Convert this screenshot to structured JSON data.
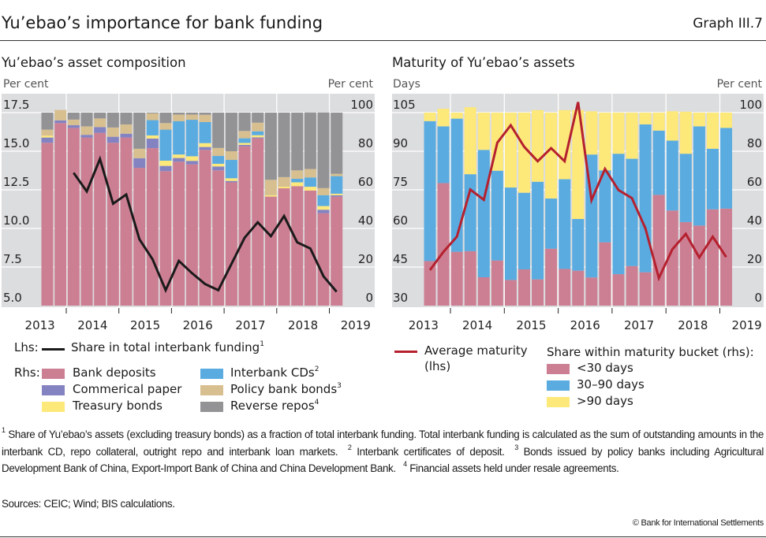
{
  "header": {
    "title": "Yu’ebao’s importance for bank funding",
    "graph_id": "Graph III.7"
  },
  "colors": {
    "deposits": "#cc7f93",
    "cp": "#8483c2",
    "treasury": "#fde87a",
    "cds": "#5aabe0",
    "policy": "#d7bf8f",
    "repos": "#939396",
    "line_left": "#1a1a1a",
    "line_right": "#b5202e",
    "plot_bg": "#dcdddf",
    "short": "#cc7f93",
    "mid": "#5aabe0",
    "long": "#fde87a"
  },
  "chart_data": [
    {
      "type": "bar",
      "stacked": true,
      "title": "Yu’ebao’s asset composition",
      "ylabel_left": "Per cent",
      "ylabel_right": "Per cent",
      "ylim_left": [
        5.0,
        17.5
      ],
      "ylim_right": [
        0,
        100
      ],
      "yticks_left": [
        "17.5",
        "15.0",
        "12.5",
        "10.0",
        "7.5",
        "5.0"
      ],
      "yticks_right": [
        "100",
        "80",
        "60",
        "40",
        "20",
        "0"
      ],
      "xtick_labels": [
        "2013",
        "2014",
        "2015",
        "2016",
        "2017",
        "2018",
        "2019"
      ],
      "categories": [
        "2013Q3",
        "2013Q4",
        "2014Q1",
        "2014Q2",
        "2014Q3",
        "2014Q4",
        "2015Q1",
        "2015Q2",
        "2015Q3",
        "2015Q4",
        "2016Q1",
        "2016Q2",
        "2016Q3",
        "2016Q4",
        "2017Q1",
        "2017Q2",
        "2017Q3",
        "2017Q4",
        "2018Q1",
        "2018Q2",
        "2018Q3",
        "2018Q4",
        "2019Q1"
      ],
      "grid": true,
      "series": [
        {
          "key": "deposits",
          "name": "Bank deposits",
          "axis": "rhs",
          "values": [
            84.4,
            94.6,
            92.1,
            87.1,
            89.5,
            84.4,
            87.1,
            71.4,
            81.6,
            69.7,
            74.6,
            73.2,
            80.7,
            70.1,
            63.9,
            82.6,
            86.7,
            56.5,
            60.8,
            61.9,
            59.6,
            47.9,
            56.5
          ]
        },
        {
          "key": "cp",
          "name": "Commerical paper",
          "axis": "rhs",
          "values": [
            2.7,
            1.4,
            1.4,
            1.4,
            3.0,
            3.1,
            2.0,
            5.0,
            5.0,
            2.7,
            1.9,
            1.8,
            1.5,
            2.0,
            0.7,
            0.7,
            0.5,
            0,
            0,
            0,
            0,
            1.8,
            0.7
          ]
        },
        {
          "key": "treasury",
          "name": "Treasury bonds",
          "axis": "rhs",
          "values": [
            1.0,
            0,
            0,
            0,
            0,
            0,
            0,
            0,
            1.6,
            2.7,
            1.8,
            2.4,
            2.0,
            1.4,
            1.4,
            1.0,
            1.1,
            0.7,
            0.8,
            2.0,
            2.0,
            1.9,
            0.8
          ]
        },
        {
          "key": "cds",
          "name": "Interbank CDs",
          "sup": "2",
          "axis": "rhs",
          "values": [
            0,
            0,
            0,
            0,
            0,
            0,
            0,
            0,
            7.9,
            16.1,
            17.3,
            18.9,
            10.9,
            4.1,
            9.5,
            2.4,
            2.0,
            0,
            0,
            1.8,
            4.8,
            5.6,
            9.1
          ]
        },
        {
          "key": "policy",
          "name": "Policy bank bonds",
          "sup": "3",
          "axis": "rhs",
          "values": [
            3.1,
            5.4,
            2.9,
            4.4,
            4.5,
            4.8,
            4.8,
            4.9,
            3.5,
            3.4,
            3.4,
            2.7,
            3.8,
            4.1,
            4.5,
            3.8,
            4.5,
            8.0,
            5.0,
            4.4,
            4.4,
            3.7,
            1.2
          ]
        },
        {
          "key": "repos",
          "name": "Reverse repos",
          "sup": "4",
          "axis": "rhs",
          "values": [
            8.8,
            0,
            3.6,
            7.1,
            3.0,
            7.7,
            6.1,
            18.7,
            0.4,
            5.4,
            1.0,
            1.0,
            1.1,
            18.3,
            20.0,
            9.5,
            5.2,
            34.8,
            33.4,
            29.9,
            29.3,
            39.2,
            31.7
          ]
        }
      ],
      "line": {
        "name": "Share in total interbank funding",
        "sup": "1",
        "axis": "lhs",
        "start_index": 2,
        "values": [
          13.6,
          12.4,
          14.5,
          11.6,
          12.2,
          9.3,
          8.0,
          6.0,
          7.9,
          7.1,
          6.4,
          6.0,
          7.7,
          9.4,
          10.4,
          9.5,
          10.8,
          9.1,
          8.7,
          6.9,
          5.9
        ]
      },
      "legend": {
        "lhs_label": "Lhs:",
        "rhs_label": "Rhs:",
        "placement": "bottom"
      }
    },
    {
      "type": "bar",
      "stacked": true,
      "title": "Maturity of Yu’ebao’s assets",
      "ylabel_left": "Days",
      "ylabel_right": "Per cent",
      "ylim_left": [
        30,
        105
      ],
      "ylim_right": [
        0,
        100
      ],
      "yticks_left": [
        "105",
        "90",
        "75",
        "60",
        "45",
        "30"
      ],
      "yticks_right": [
        "100",
        "80",
        "60",
        "40",
        "20",
        "0"
      ],
      "xtick_labels": [
        "2013",
        "2014",
        "2015",
        "2016",
        "2017",
        "2018",
        "2019"
      ],
      "categories": [
        "2013Q3",
        "2013Q4",
        "2014Q1",
        "2014Q2",
        "2014Q3",
        "2014Q4",
        "2015Q1",
        "2015Q2",
        "2015Q3",
        "2015Q4",
        "2016Q1",
        "2016Q2",
        "2016Q3",
        "2016Q4",
        "2017Q1",
        "2017Q2",
        "2017Q3",
        "2017Q4",
        "2018Q1",
        "2018Q2",
        "2018Q3",
        "2018Q4",
        "2019Q1"
      ],
      "grid": true,
      "series": [
        {
          "key": "short",
          "name": "<30 days",
          "axis": "rhs",
          "values": [
            23.1,
            63.5,
            27.9,
            28.2,
            14.7,
            23.4,
            13.3,
            18.8,
            13.6,
            29.5,
            19.0,
            18.1,
            14.6,
            32.8,
            16.3,
            20.5,
            17.3,
            57.4,
            49.3,
            43.3,
            41.5,
            49.9,
            50.3
          ]
        },
        {
          "key": "mid",
          "name": "30–90 days",
          "axis": "rhs",
          "values": [
            72.5,
            29.4,
            69.0,
            39.9,
            66.0,
            46.5,
            47.9,
            39.7,
            50.6,
            26.0,
            46.5,
            26.8,
            63.7,
            37.3,
            62.4,
            55.6,
            76.6,
            33.3,
            36.2,
            35.4,
            51.4,
            31.4,
            41.8
          ]
        },
        {
          "key": "long",
          "name": ">90 days",
          "axis": "rhs",
          "values": [
            4.4,
            9.1,
            3.1,
            34.7,
            19.3,
            30.1,
            38.8,
            41.5,
            37.1,
            44.5,
            35.8,
            56.5,
            22.4,
            29.9,
            21.3,
            23.9,
            6.1,
            9.3,
            15.2,
            21.8,
            7.1,
            18.7,
            7.9
          ]
        }
      ],
      "line": {
        "name": "Average maturity",
        "name2": "(lhs)",
        "axis": "lhs",
        "start_index": 0,
        "values": [
          43.8,
          50.9,
          56.8,
          75.1,
          71.1,
          93.3,
          100.1,
          91.7,
          86.1,
          91.2,
          86.1,
          109.1,
          71.0,
          83.1,
          74.9,
          71.8,
          60.1,
          40.7,
          51.9,
          57.9,
          48.7,
          56.8,
          48.9
        ]
      },
      "legend": {
        "bucket_title": "Share within maturity bucket (rhs):",
        "placement": "bottom"
      }
    }
  ],
  "footnotes": [
    {
      "num": "1",
      "text": "Share of Yu’ebao’s assets (excluding treasury bonds) as a fraction of total interbank funding. Total interbank funding is calculated as the sum of outstanding amounts in the interbank CD, repo collateral, outright repo and interbank loan markets."
    },
    {
      "num": "2",
      "text": "Interbank certificates of deposit."
    },
    {
      "num": "3",
      "text": "Bonds issued by policy banks including Agricultural Development Bank of China, Export-Import Bank of China and China Development Bank."
    },
    {
      "num": "4",
      "text": "Financial assets held under resale agreements."
    }
  ],
  "sources": "Sources: CEIC; Wind; BIS calculations.",
  "copyright": "© Bank for International Settlements"
}
